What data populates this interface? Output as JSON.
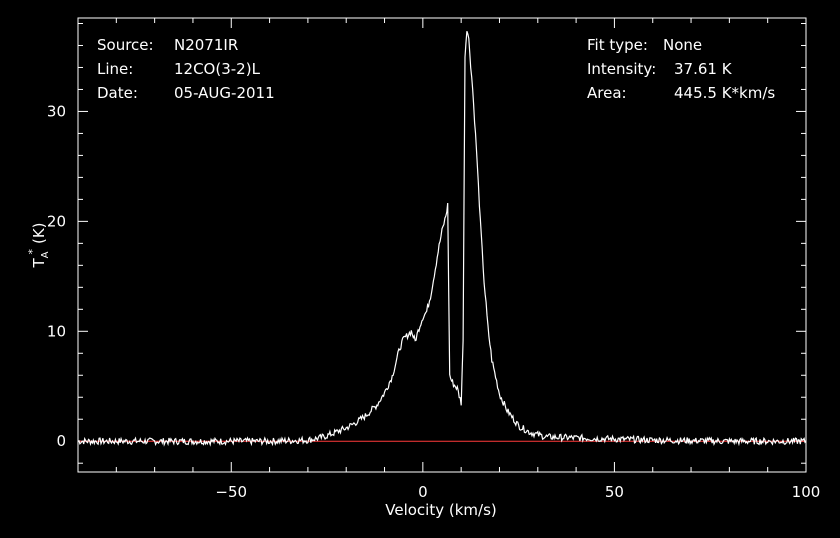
{
  "info": {
    "source_label": "Source:",
    "source_value": "N2071IR",
    "line_label": "Line:",
    "line_value": "12CO(3-2)L",
    "date_label": "Date:",
    "date_value": "05-AUG-2011",
    "fit_label": "Fit type:",
    "fit_value": "None",
    "intensity_label": "Intensity:",
    "intensity_value": "37.61 K",
    "area_label": "Area:",
    "area_value": "445.5 K*km/s"
  },
  "colors": {
    "background": "#000000",
    "spectrum": "#ffffff",
    "baseline": "#ff3b3b",
    "axes": "#ffffff"
  },
  "chart_data": {
    "type": "line",
    "xlabel": "Velocity (km/s)",
    "ylabel_main": "T",
    "ylabel_sub": "A",
    "ylabel_sup": "*",
    "ylabel_unit": "(K)",
    "xlim": [
      -90,
      100
    ],
    "ylim": [
      -2.8,
      38.5
    ],
    "x_ticks": [
      -50,
      0,
      50,
      100
    ],
    "x_tick_labels": [
      "−50",
      "0",
      "50",
      "100"
    ],
    "y_ticks": [
      0,
      10,
      20,
      30
    ],
    "y_tick_labels": [
      "0",
      "10",
      "20",
      "30"
    ],
    "grid": false,
    "baseline_value": 0,
    "series": [
      {
        "x": [
          -90,
          -40,
          -30,
          -27,
          -25,
          -20,
          -17,
          -15,
          -12,
          -10,
          -8,
          -6,
          -5,
          -3,
          -2,
          -1,
          0,
          1,
          2,
          3,
          4,
          5,
          6,
          6.5,
          7,
          7.5,
          8,
          9,
          10,
          10.5,
          11,
          11.5,
          12,
          13,
          14,
          15,
          16,
          17,
          18,
          20,
          22,
          25,
          28,
          32,
          40,
          60,
          80,
          100
        ],
        "y": [
          0,
          0,
          0.1,
          0.3,
          0.5,
          1.2,
          1.8,
          2.3,
          3.3,
          4.4,
          5.9,
          8.5,
          9.3,
          10.0,
          9.1,
          10.3,
          11.3,
          11.8,
          13.2,
          15.2,
          17.3,
          19.1,
          20.5,
          21.5,
          6.0,
          5.5,
          5.2,
          4.8,
          3.5,
          9.0,
          35.0,
          37.6,
          36.5,
          32.0,
          26.5,
          20.0,
          14.5,
          10.3,
          7.4,
          4.3,
          2.8,
          1.4,
          0.8,
          0.4,
          0.3,
          0.1,
          0,
          0
        ]
      }
    ]
  }
}
